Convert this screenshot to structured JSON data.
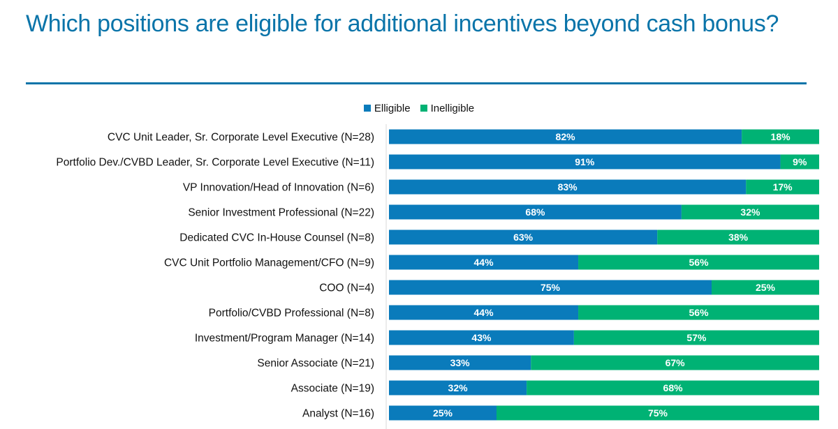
{
  "header": {
    "title": "Which positions are eligible for additional incentives beyond cash bonus?"
  },
  "colors": {
    "title": "#0a74a9",
    "eligible": "#0a7bbb",
    "ineligible": "#00b274"
  },
  "chart_data": {
    "type": "bar",
    "orientation": "horizontal",
    "stacked": true,
    "percent_stacked": true,
    "title": "Which positions are eligible for additional incentives beyond cash bonus?",
    "xlabel": "",
    "ylabel": "",
    "xlim": [
      0,
      100
    ],
    "grid": false,
    "legend": {
      "position": "top-center",
      "entries": [
        "Elligible",
        "Inelligible"
      ]
    },
    "categories": [
      "CVC Unit Leader, Sr. Corporate Level Executive (N=28)",
      "Portfolio Dev./CVBD Leader, Sr. Corporate Level Executive (N=11)",
      "VP Innovation/Head of Innovation (N=6)",
      "Senior Investment Professional (N=22)",
      "Dedicated CVC In-House Counsel (N=8)",
      "CVC Unit Portfolio Management/CFO (N=9)",
      "COO (N=4)",
      "Portfolio/CVBD Professional (N=8)",
      "Investment/Program Manager (N=14)",
      "Senior Associate (N=21)",
      "Associate (N=19)",
      "Analyst (N=16)"
    ],
    "series": [
      {
        "name": "Elligible",
        "values": [
          82,
          91,
          83,
          68,
          63,
          44,
          75,
          44,
          43,
          33,
          32,
          25
        ],
        "labels": [
          "82%",
          "91%",
          "83%",
          "68%",
          "63%",
          "44%",
          "75%",
          "44%",
          "43%",
          "33%",
          "32%",
          "25%"
        ]
      },
      {
        "name": "Inelligible",
        "values": [
          18,
          9,
          17,
          32,
          38,
          56,
          25,
          56,
          57,
          67,
          68,
          75
        ],
        "labels": [
          "18%",
          "9%",
          "17%",
          "32%",
          "38%",
          "56%",
          "25%",
          "56%",
          "57%",
          "67%",
          "68%",
          "75%"
        ]
      }
    ]
  }
}
